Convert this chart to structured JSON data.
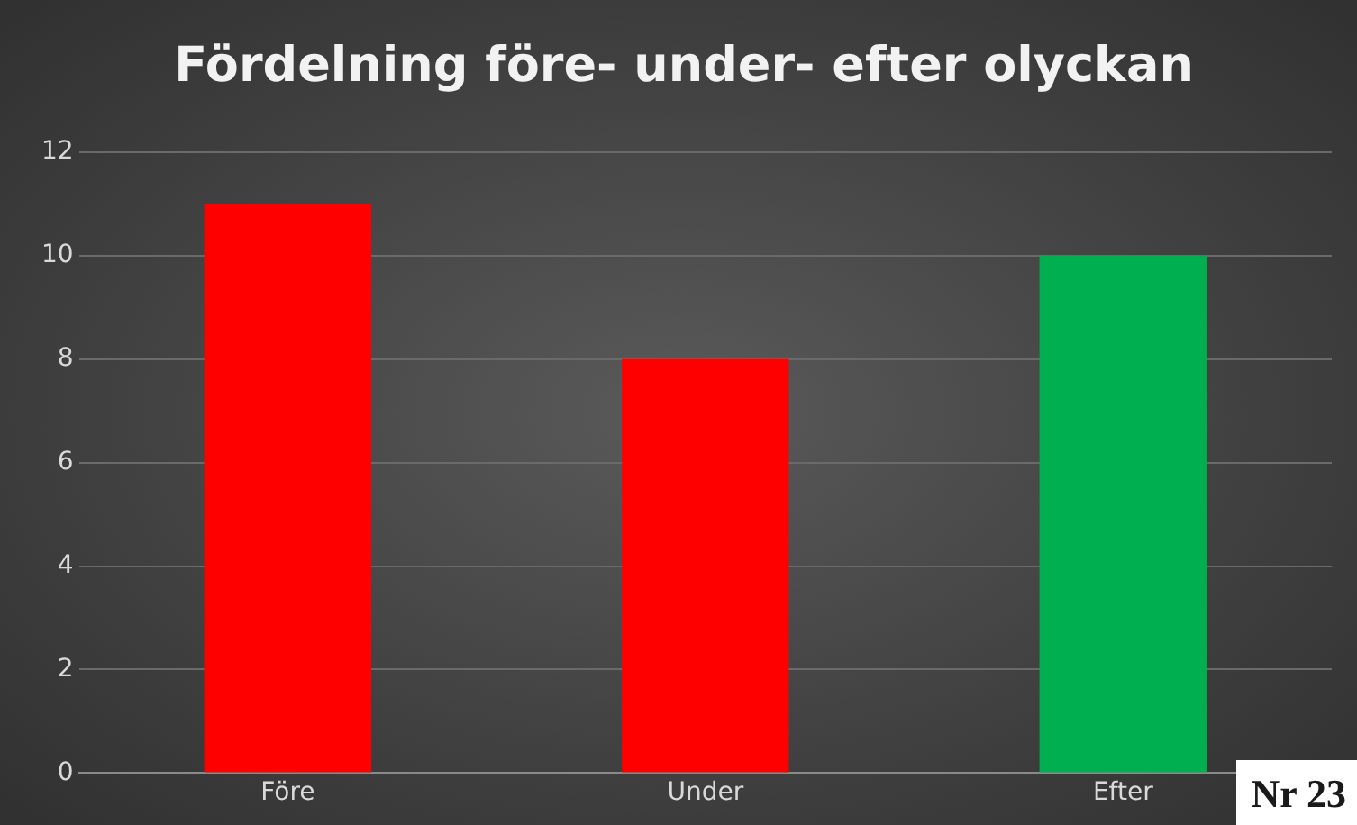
{
  "chart_data": {
    "type": "bar",
    "title": "Fördelning före- under- efter olyckan",
    "categories": [
      "Före",
      "Under",
      "Efter"
    ],
    "values": [
      11,
      8,
      10
    ],
    "colors": [
      "#ff0000",
      "#ff0000",
      "#00b050"
    ],
    "ylim": [
      0,
      12
    ],
    "yticks": [
      0,
      2,
      4,
      6,
      8,
      10,
      12
    ],
    "grid": "y",
    "legend": false,
    "annotations": [
      "Nr 23"
    ]
  }
}
